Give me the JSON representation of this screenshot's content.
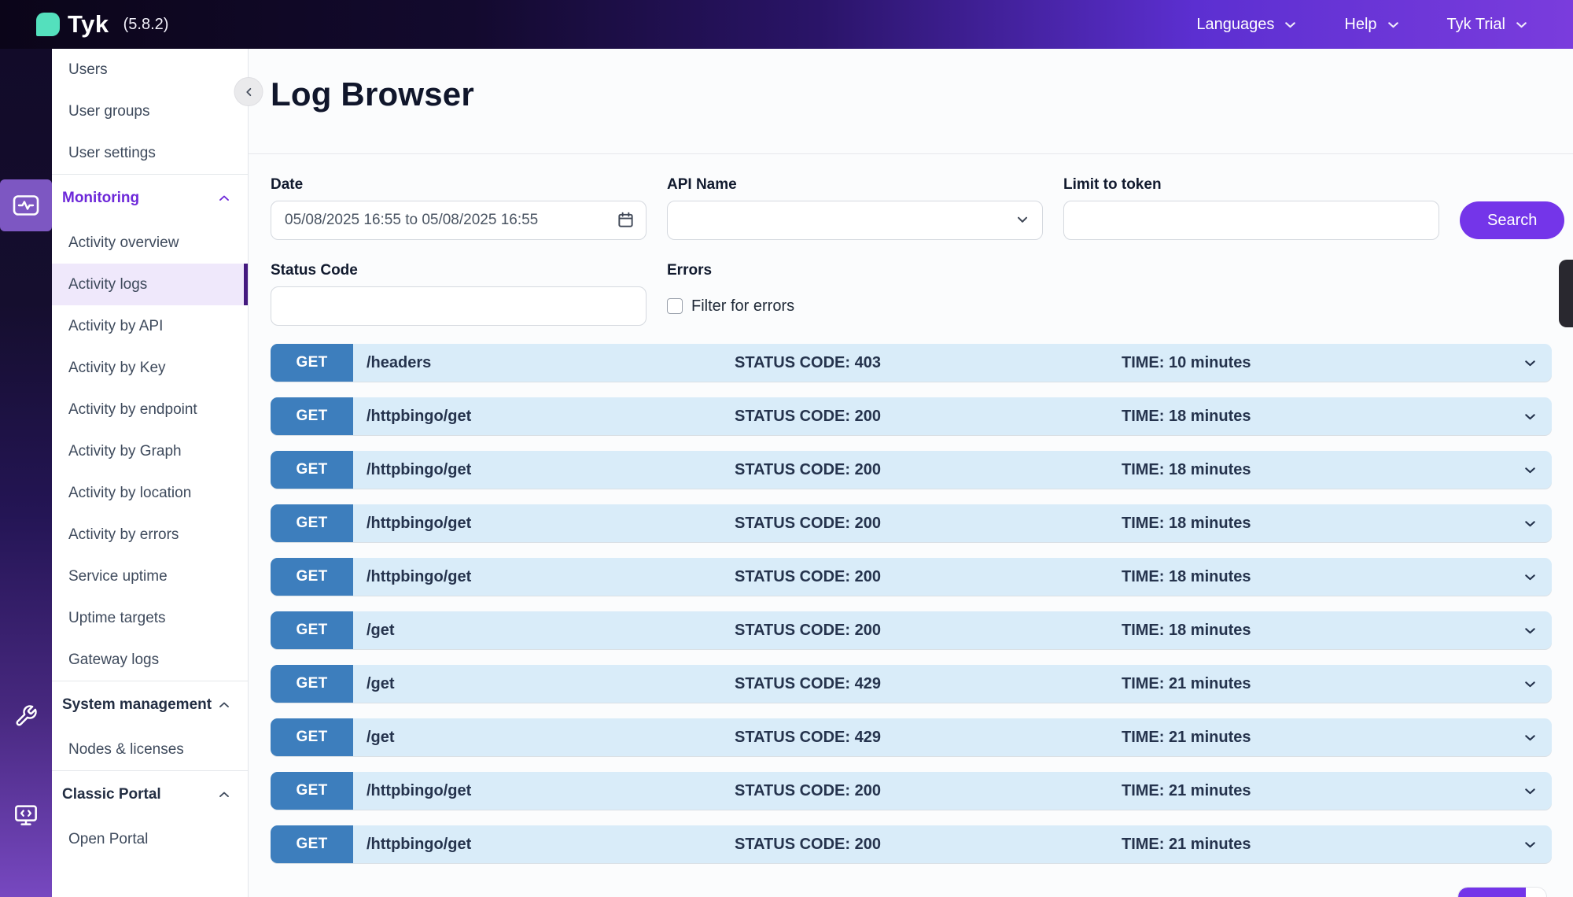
{
  "topbar": {
    "brand": "Tyk",
    "version": "(5.8.2)",
    "menus": [
      {
        "label": "Languages"
      },
      {
        "label": "Help"
      },
      {
        "label": "Tyk Trial"
      }
    ]
  },
  "sidebar": {
    "items": [
      {
        "kind": "link",
        "label": "Users"
      },
      {
        "kind": "link",
        "label": "User groups"
      },
      {
        "kind": "link",
        "label": "User settings"
      },
      {
        "kind": "divider"
      },
      {
        "kind": "header",
        "label": "Monitoring",
        "accent": true,
        "expanded": true
      },
      {
        "kind": "link",
        "label": "Activity overview"
      },
      {
        "kind": "link",
        "label": "Activity logs",
        "selected": true
      },
      {
        "kind": "link",
        "label": "Activity by API"
      },
      {
        "kind": "link",
        "label": "Activity by Key"
      },
      {
        "kind": "link",
        "label": "Activity by endpoint"
      },
      {
        "kind": "link",
        "label": "Activity by Graph"
      },
      {
        "kind": "link",
        "label": "Activity by location"
      },
      {
        "kind": "link",
        "label": "Activity by errors"
      },
      {
        "kind": "link",
        "label": "Service uptime"
      },
      {
        "kind": "link",
        "label": "Uptime targets"
      },
      {
        "kind": "link",
        "label": "Gateway logs"
      },
      {
        "kind": "divider"
      },
      {
        "kind": "header",
        "label": "System management",
        "accent": false,
        "expanded": true
      },
      {
        "kind": "link",
        "label": "Nodes & licenses"
      },
      {
        "kind": "divider"
      },
      {
        "kind": "header",
        "label": "Classic Portal",
        "accent": false,
        "expanded": true
      },
      {
        "kind": "link",
        "label": "Open Portal"
      }
    ]
  },
  "main": {
    "title": "Log Browser",
    "filters": {
      "date": {
        "label": "Date",
        "value": "05/08/2025 16:55 to 05/08/2025 16:55"
      },
      "api_name": {
        "label": "API Name",
        "value": ""
      },
      "limit_to_token": {
        "label": "Limit to token",
        "value": ""
      },
      "search_label": "Search",
      "status_code": {
        "label": "Status Code",
        "value": ""
      },
      "errors": {
        "label": "Errors",
        "checkbox_label": "Filter for errors",
        "checked": false
      }
    },
    "logs": [
      {
        "method": "GET",
        "path": "/headers",
        "status_text": "STATUS CODE: 403",
        "time_text": "TIME: 10 minutes"
      },
      {
        "method": "GET",
        "path": "/httpbingo/get",
        "status_text": "STATUS CODE: 200",
        "time_text": "TIME: 18 minutes"
      },
      {
        "method": "GET",
        "path": "/httpbingo/get",
        "status_text": "STATUS CODE: 200",
        "time_text": "TIME: 18 minutes"
      },
      {
        "method": "GET",
        "path": "/httpbingo/get",
        "status_text": "STATUS CODE: 200",
        "time_text": "TIME: 18 minutes"
      },
      {
        "method": "GET",
        "path": "/httpbingo/get",
        "status_text": "STATUS CODE: 200",
        "time_text": "TIME: 18 minutes"
      },
      {
        "method": "GET",
        "path": "/get",
        "status_text": "STATUS CODE: 200",
        "time_text": "TIME: 18 minutes"
      },
      {
        "method": "GET",
        "path": "/get",
        "status_text": "STATUS CODE: 429",
        "time_text": "TIME: 21 minutes"
      },
      {
        "method": "GET",
        "path": "/get",
        "status_text": "STATUS CODE: 429",
        "time_text": "TIME: 21 minutes"
      },
      {
        "method": "GET",
        "path": "/httpbingo/get",
        "status_text": "STATUS CODE: 200",
        "time_text": "TIME: 21 minutes"
      },
      {
        "method": "GET",
        "path": "/httpbingo/get",
        "status_text": "STATUS CODE: 200",
        "time_text": "TIME: 21 minutes"
      }
    ]
  },
  "colors": {
    "accent_purple": "#7435E9",
    "topbar_gradient_start": "#0B0519",
    "topbar_gradient_end": "#7A3CDD",
    "logo_teal": "#54E0BD",
    "row_bg_blue": "#D9ECF9",
    "method_badge_blue": "#3D7EBD",
    "row_text_navy": "#25334D",
    "sidebar_selected_bg": "#EFE8FB",
    "sidebar_selected_border": "#44197F",
    "monitoring_accent": "#6D28D9"
  }
}
